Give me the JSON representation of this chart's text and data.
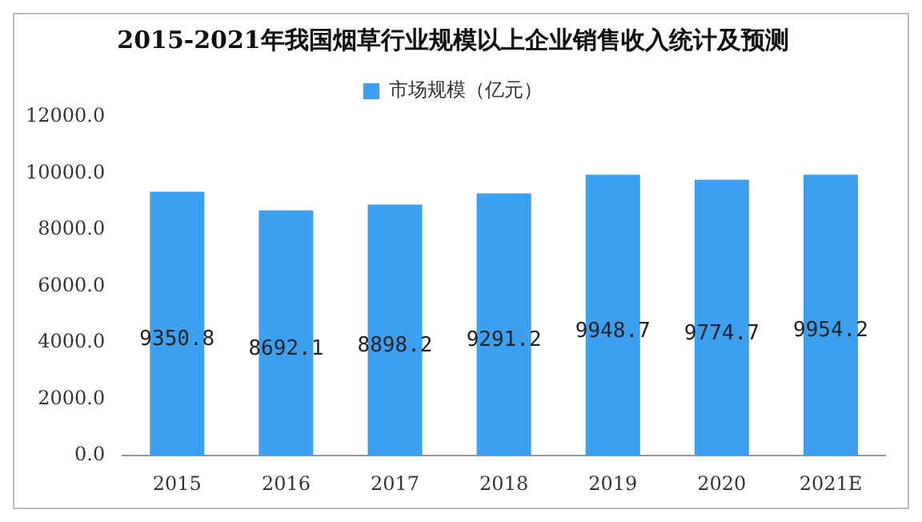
{
  "chart_data": {
    "type": "bar",
    "title": "2015-2021年我国烟草行业规模以上企业销售收入统计及预测",
    "categories": [
      "2015",
      "2016",
      "2017",
      "2018",
      "2019",
      "2020",
      "2021E"
    ],
    "series": [
      {
        "name": "市场规模（亿元）",
        "color": "#3d9ff0",
        "values": [
          9350.8,
          8692.1,
          8898.2,
          9291.2,
          9948.7,
          9774.7,
          9954.2
        ]
      }
    ],
    "ylim": [
      0,
      12000
    ],
    "yticks": [
      {
        "value": 0,
        "label": "0.0"
      },
      {
        "value": 2000,
        "label": "2000.0"
      },
      {
        "value": 4000,
        "label": "4000.0"
      },
      {
        "value": 6000,
        "label": "6000.0"
      },
      {
        "value": 8000,
        "label": "8000.0"
      },
      {
        "value": 10000,
        "label": "10000.0"
      },
      {
        "value": 12000,
        "label": "12000.0"
      }
    ],
    "grid": false,
    "legend": "top",
    "data_labels": true
  }
}
